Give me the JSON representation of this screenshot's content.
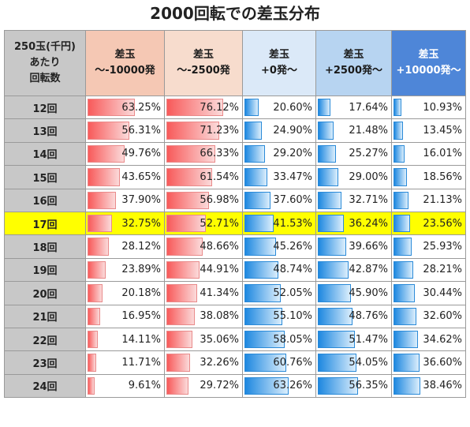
{
  "title": "2000回転での差玉分布",
  "header": {
    "row_label_lines": [
      "250玉(千円)",
      "あたり",
      "回転数"
    ],
    "columns": [
      {
        "line1": "差玉",
        "line2": "～-10000発",
        "color": "#f5c8b4"
      },
      {
        "line1": "差玉",
        "line2": "～-2500発",
        "color": "#f7dccd"
      },
      {
        "line1": "差玉",
        "line2": "+0発～",
        "color": "#dbe9f8"
      },
      {
        "line1": "差玉",
        "line2": "+2500発～",
        "color": "#b7d4f1"
      },
      {
        "line1": "差玉",
        "line2": "+10000発～",
        "color": "#4e86d8"
      }
    ]
  },
  "highlight_row": "17回",
  "highlight_color": "#ffff00",
  "chart_data": {
    "type": "table",
    "title": "2000回転での差玉分布",
    "categories": [
      "12回",
      "13回",
      "14回",
      "15回",
      "16回",
      "17回",
      "18回",
      "19回",
      "20回",
      "21回",
      "22回",
      "23回",
      "24回"
    ],
    "series": [
      {
        "name": "差玉～-10000発",
        "bar_color": "red",
        "values": [
          63.25,
          56.31,
          49.76,
          43.65,
          37.9,
          32.75,
          28.12,
          23.89,
          20.18,
          16.95,
          14.11,
          11.71,
          9.61
        ],
        "labels": [
          "63.25%",
          "56.31%",
          "49.76%",
          "43.65%",
          "37.90%",
          "32.75%",
          "28.12%",
          "23.89%",
          "20.18%",
          "16.95%",
          "14.11%",
          "11.71%",
          "9.61%"
        ]
      },
      {
        "name": "差玉～-2500発",
        "bar_color": "red",
        "values": [
          76.12,
          71.23,
          66.33,
          61.54,
          56.98,
          52.71,
          48.66,
          44.91,
          41.34,
          38.08,
          35.06,
          32.26,
          29.72
        ],
        "labels": [
          "76.12%",
          "71.23%",
          "66.33%",
          "61.54%",
          "56.98%",
          "52.71%",
          "48.66%",
          "44.91%",
          "41.34%",
          "38.08%",
          "35.06%",
          "32.26%",
          "29.72%"
        ]
      },
      {
        "name": "差玉+0発～",
        "bar_color": "blue",
        "values": [
          20.6,
          24.9,
          29.2,
          33.47,
          37.6,
          41.53,
          45.26,
          48.74,
          52.05,
          55.1,
          58.05,
          60.76,
          63.26
        ],
        "labels": [
          "20.60%",
          "24.90%",
          "29.20%",
          "33.47%",
          "37.60%",
          "41.53%",
          "45.26%",
          "48.74%",
          "52.05%",
          "55.10%",
          "58.05%",
          "60.76%",
          "63.26%"
        ]
      },
      {
        "name": "差玉+2500発～",
        "bar_color": "blue",
        "values": [
          17.64,
          21.48,
          25.27,
          29.0,
          32.71,
          36.24,
          39.66,
          42.87,
          45.9,
          48.76,
          51.47,
          54.05,
          56.35
        ],
        "labels": [
          "17.64%",
          "21.48%",
          "25.27%",
          "29.00%",
          "32.71%",
          "36.24%",
          "39.66%",
          "42.87%",
          "45.90%",
          "48.76%",
          "51.47%",
          "54.05%",
          "56.35%"
        ]
      },
      {
        "name": "差玉+10000発～",
        "bar_color": "blue",
        "values": [
          10.93,
          13.45,
          16.01,
          18.56,
          21.13,
          23.56,
          25.93,
          28.21,
          30.44,
          32.6,
          34.62,
          36.6,
          38.46
        ],
        "labels": [
          "10.93%",
          "13.45%",
          "16.01%",
          "18.56%",
          "21.13%",
          "23.56%",
          "25.93%",
          "28.21%",
          "30.44%",
          "32.60%",
          "34.62%",
          "36.60%",
          "38.46%"
        ]
      }
    ]
  }
}
